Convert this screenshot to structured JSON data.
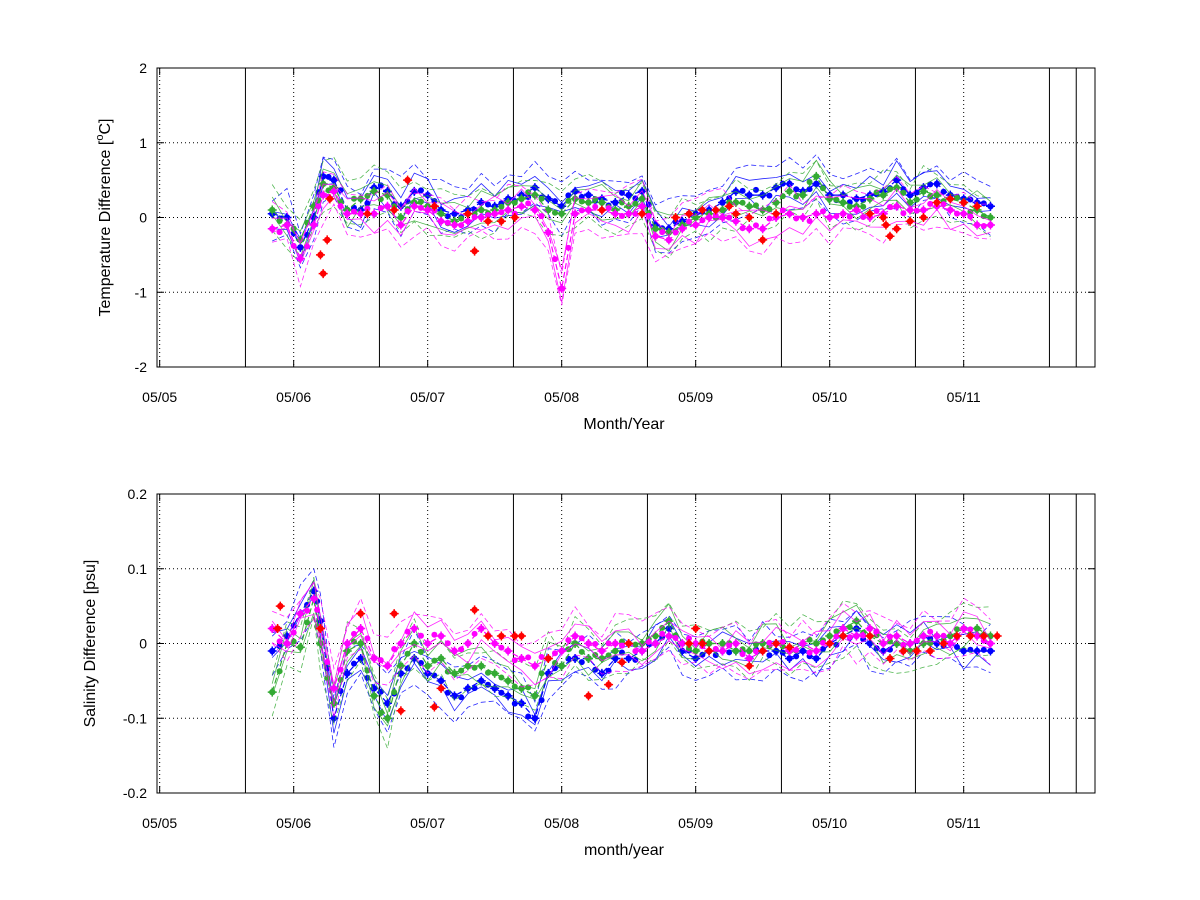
{
  "chart_data": [
    {
      "type": "line",
      "title": "",
      "xlabel": "Month/Year",
      "ylabel_main": "Temperature Difference [",
      "ylabel_sup": "o",
      "ylabel_end": "C]",
      "ylim": [
        -2,
        2
      ],
      "yticks": [
        -2,
        -1,
        0,
        1,
        2
      ],
      "ytick_labels": [
        "-2",
        "-1",
        "0",
        "1",
        "2"
      ],
      "xlim": [
        -0.02,
        6.98
      ],
      "xticks": [
        0,
        1,
        2,
        3,
        4,
        5,
        6
      ],
      "xtick_labels": [
        "05/05",
        "05/06",
        "05/07",
        "05/08",
        "05/09",
        "05/10",
        "05/11"
      ],
      "vlines": [
        0.64,
        1.64,
        2.64,
        3.64,
        4.64,
        5.64,
        6.64,
        6.84
      ],
      "grid": "dotted",
      "legend": "none",
      "series": [
        {
          "color": "#0000ff",
          "style": "markers+dashed-band",
          "x": [
            0.84,
            0.95,
            1.05,
            1.15,
            1.22,
            1.3,
            1.4,
            1.5,
            1.6,
            1.7,
            1.8,
            1.9,
            2.0,
            2.1,
            2.2,
            2.3,
            2.4,
            2.5,
            2.6,
            2.7,
            2.8,
            2.9,
            3.0,
            3.1,
            3.2,
            3.3,
            3.4,
            3.5,
            3.6,
            3.7,
            3.8,
            3.9,
            4.0,
            4.1,
            4.2,
            4.3,
            4.4,
            4.5,
            4.6,
            4.7,
            4.8,
            4.9,
            5.0,
            5.1,
            5.2,
            5.3,
            5.4,
            5.5,
            5.6,
            5.7,
            5.8,
            5.9,
            6.0,
            6.1,
            6.2
          ],
          "y": [
            0.05,
            0.0,
            -0.4,
            0.0,
            0.55,
            0.5,
            0.1,
            0.1,
            0.4,
            0.35,
            0.15,
            0.35,
            0.3,
            0.1,
            0.05,
            0.1,
            0.2,
            0.15,
            0.25,
            0.3,
            0.4,
            0.25,
            0.15,
            0.35,
            0.3,
            0.25,
            0.2,
            0.3,
            0.35,
            -0.1,
            -0.15,
            -0.05,
            0.05,
            0.1,
            0.2,
            0.35,
            0.3,
            0.3,
            0.4,
            0.45,
            0.35,
            0.45,
            0.3,
            0.3,
            0.25,
            0.3,
            0.35,
            0.5,
            0.3,
            0.4,
            0.45,
            0.3,
            0.25,
            0.2,
            0.15
          ]
        },
        {
          "color": "#33aa33",
          "style": "markers+dashed-band",
          "x": [
            0.84,
            0.95,
            1.05,
            1.15,
            1.22,
            1.3,
            1.4,
            1.5,
            1.6,
            1.7,
            1.8,
            1.9,
            2.0,
            2.1,
            2.2,
            2.3,
            2.4,
            2.5,
            2.6,
            2.7,
            2.8,
            2.9,
            3.0,
            3.1,
            3.2,
            3.3,
            3.4,
            3.5,
            3.6,
            3.7,
            3.8,
            3.9,
            4.0,
            4.1,
            4.2,
            4.3,
            4.4,
            4.5,
            4.6,
            4.7,
            4.8,
            4.9,
            5.0,
            5.1,
            5.2,
            5.3,
            5.4,
            5.5,
            5.6,
            5.7,
            5.8,
            5.9,
            6.0,
            6.1,
            6.2
          ],
          "y": [
            0.1,
            -0.1,
            -0.3,
            0.15,
            0.45,
            0.4,
            0.1,
            0.25,
            0.35,
            0.3,
            0.0,
            0.2,
            0.15,
            0.05,
            -0.05,
            0.05,
            0.1,
            0.1,
            0.2,
            0.25,
            0.3,
            0.1,
            0.05,
            0.25,
            0.2,
            0.2,
            0.1,
            0.15,
            0.25,
            -0.15,
            -0.2,
            -0.1,
            0.0,
            0.05,
            0.1,
            0.2,
            0.15,
            0.1,
            0.2,
            0.35,
            0.3,
            0.55,
            0.25,
            0.2,
            0.15,
            0.25,
            0.3,
            0.4,
            0.2,
            0.35,
            0.3,
            0.25,
            0.2,
            0.1,
            0.0
          ]
        },
        {
          "color": "#ff00ff",
          "style": "markers+dashed-band",
          "x": [
            0.84,
            0.95,
            1.05,
            1.15,
            1.22,
            1.3,
            1.4,
            1.5,
            1.6,
            1.7,
            1.8,
            1.9,
            2.0,
            2.1,
            2.2,
            2.3,
            2.4,
            2.5,
            2.6,
            2.7,
            2.8,
            2.9,
            3.0,
            3.1,
            3.2,
            3.3,
            3.4,
            3.5,
            3.6,
            3.7,
            3.8,
            3.9,
            4.0,
            4.1,
            4.2,
            4.3,
            4.4,
            4.5,
            4.6,
            4.7,
            4.8,
            4.9,
            5.0,
            5.1,
            5.2,
            5.3,
            5.4,
            5.5,
            5.6,
            5.7,
            5.8,
            5.9,
            6.0,
            6.1,
            6.2
          ],
          "y": [
            -0.15,
            -0.1,
            -0.55,
            -0.1,
            0.3,
            0.35,
            0.05,
            0.05,
            0.05,
            0.15,
            -0.1,
            0.15,
            0.1,
            -0.05,
            -0.1,
            -0.05,
            0.0,
            0.05,
            0.1,
            0.15,
            0.1,
            -0.2,
            -0.95,
            0.05,
            0.1,
            0.1,
            0.05,
            0.05,
            0.15,
            -0.25,
            -0.3,
            -0.15,
            -0.1,
            0.0,
            0.0,
            -0.05,
            -0.15,
            -0.15,
            0.0,
            0.05,
            0.0,
            0.05,
            0.0,
            0.05,
            0.1,
            0.0,
            0.05,
            0.15,
            0.1,
            0.1,
            0.15,
            0.1,
            0.05,
            -0.1,
            -0.1
          ]
        },
        {
          "color": "#ff0000",
          "style": "markers",
          "x": [
            1.2,
            1.22,
            1.25,
            1.27,
            1.55,
            1.75,
            1.85,
            2.05,
            2.3,
            2.35,
            2.45,
            2.55,
            2.65,
            3.3,
            3.6,
            3.85,
            3.95,
            4.05,
            4.15,
            4.25,
            4.3,
            4.4,
            4.5,
            4.6,
            5.3,
            5.4,
            5.42,
            5.45,
            5.5,
            5.6,
            5.7,
            5.8,
            5.9,
            6.0,
            6.1
          ],
          "y": [
            -0.5,
            -0.75,
            -0.3,
            0.25,
            0.05,
            0.1,
            0.5,
            0.15,
            0.05,
            -0.45,
            -0.05,
            -0.05,
            0.0,
            0.1,
            0.05,
            0.0,
            0.05,
            0.1,
            0.1,
            0.15,
            0.05,
            0.0,
            -0.3,
            0.05,
            0.05,
            0.0,
            -0.1,
            -0.25,
            -0.15,
            -0.05,
            0.0,
            0.2,
            0.25,
            0.2,
            0.15
          ]
        }
      ]
    },
    {
      "type": "line",
      "title": "",
      "xlabel": "month/year",
      "ylabel": "Salinity Difference [psu]",
      "ylim": [
        -0.2,
        0.2
      ],
      "yticks": [
        -0.2,
        -0.1,
        0,
        0.1,
        0.2
      ],
      "ytick_labels": [
        "-0.2",
        "-0.1",
        "0",
        "0.1",
        "0.2"
      ],
      "xlim": [
        -0.02,
        6.98
      ],
      "xticks": [
        0,
        1,
        2,
        3,
        4,
        5,
        6
      ],
      "xtick_labels": [
        "05/05",
        "05/06",
        "05/07",
        "05/08",
        "05/09",
        "05/10",
        "05/11"
      ],
      "vlines": [
        0.64,
        1.64,
        2.64,
        3.64,
        4.64,
        5.64,
        6.64,
        6.84
      ],
      "grid": "dotted",
      "legend": "none",
      "series": [
        {
          "color": "#0000ff",
          "style": "markers+dashed-band",
          "x": [
            0.84,
            0.95,
            1.05,
            1.15,
            1.2,
            1.3,
            1.4,
            1.5,
            1.6,
            1.7,
            1.8,
            1.9,
            2.0,
            2.1,
            2.2,
            2.3,
            2.4,
            2.5,
            2.6,
            2.7,
            2.8,
            2.9,
            3.0,
            3.1,
            3.2,
            3.3,
            3.4,
            3.5,
            3.6,
            3.7,
            3.8,
            3.9,
            4.0,
            4.1,
            4.2,
            4.3,
            4.4,
            4.5,
            4.6,
            4.7,
            4.8,
            4.9,
            5.0,
            5.1,
            5.2,
            5.3,
            5.4,
            5.5,
            5.6,
            5.7,
            5.8,
            5.9,
            6.0,
            6.1,
            6.2
          ],
          "y": [
            -0.01,
            0.01,
            0.04,
            0.07,
            0.03,
            -0.1,
            -0.04,
            -0.02,
            -0.06,
            -0.08,
            -0.04,
            -0.02,
            -0.04,
            -0.05,
            -0.07,
            -0.06,
            -0.05,
            -0.06,
            -0.07,
            -0.08,
            -0.1,
            -0.04,
            -0.03,
            -0.02,
            -0.02,
            -0.04,
            -0.02,
            -0.02,
            -0.01,
            0.0,
            0.02,
            -0.01,
            -0.02,
            -0.01,
            -0.01,
            -0.01,
            -0.02,
            -0.01,
            -0.01,
            -0.02,
            -0.01,
            -0.02,
            0.0,
            0.01,
            0.02,
            0.0,
            -0.01,
            0.0,
            0.0,
            0.01,
            0.0,
            0.0,
            -0.01,
            -0.01,
            -0.01
          ]
        },
        {
          "color": "#33aa33",
          "style": "markers+dashed-band",
          "x": [
            0.84,
            0.95,
            1.05,
            1.15,
            1.2,
            1.3,
            1.4,
            1.5,
            1.6,
            1.7,
            1.8,
            1.9,
            2.0,
            2.1,
            2.2,
            2.3,
            2.4,
            2.5,
            2.6,
            2.7,
            2.8,
            2.9,
            3.0,
            3.1,
            3.2,
            3.3,
            3.4,
            3.5,
            3.6,
            3.7,
            3.8,
            3.9,
            4.0,
            4.1,
            4.2,
            4.3,
            4.4,
            4.5,
            4.6,
            4.7,
            4.8,
            4.9,
            5.0,
            5.1,
            5.2,
            5.3,
            5.4,
            5.5,
            5.6,
            5.7,
            5.8,
            5.9,
            6.0,
            6.1,
            6.2
          ],
          "y": [
            -0.065,
            0.0,
            -0.005,
            0.06,
            0.0,
            -0.08,
            -0.01,
            0.0,
            -0.07,
            -0.1,
            -0.03,
            0.0,
            -0.03,
            -0.02,
            -0.04,
            -0.03,
            -0.03,
            -0.04,
            -0.05,
            -0.06,
            -0.07,
            -0.02,
            -0.03,
            0.0,
            -0.02,
            -0.02,
            -0.01,
            0.0,
            0.0,
            0.01,
            0.03,
            0.0,
            -0.01,
            0.0,
            0.0,
            -0.01,
            -0.01,
            0.0,
            0.0,
            -0.01,
            0.0,
            0.0,
            0.01,
            0.02,
            0.03,
            0.01,
            0.0,
            0.0,
            -0.01,
            0.0,
            0.01,
            0.01,
            0.02,
            0.02,
            0.01
          ]
        },
        {
          "color": "#ff00ff",
          "style": "markers+dashed-band",
          "x": [
            0.84,
            0.95,
            1.05,
            1.15,
            1.2,
            1.3,
            1.4,
            1.5,
            1.6,
            1.7,
            1.8,
            1.9,
            2.0,
            2.1,
            2.2,
            2.3,
            2.4,
            2.5,
            2.6,
            2.7,
            2.8,
            2.9,
            3.0,
            3.1,
            3.2,
            3.3,
            3.4,
            3.5,
            3.6,
            3.7,
            3.8,
            3.9,
            4.0,
            4.1,
            4.2,
            4.3,
            4.4,
            4.5,
            4.6,
            4.7,
            4.8,
            4.9,
            5.0,
            5.1,
            5.2,
            5.3,
            5.4,
            5.5,
            5.6,
            5.7,
            5.8,
            5.9,
            6.0,
            6.1,
            6.2
          ],
          "y": [
            0.02,
            0.0,
            0.04,
            0.06,
            0.02,
            -0.06,
            0.0,
            0.02,
            -0.02,
            -0.03,
            0.0,
            0.02,
            0.0,
            0.01,
            -0.01,
            0.0,
            0.02,
            0.0,
            -0.01,
            -0.02,
            -0.03,
            -0.02,
            -0.01,
            0.01,
            0.0,
            -0.01,
            0.0,
            0.0,
            -0.01,
            0.0,
            0.01,
            0.0,
            0.0,
            -0.01,
            -0.01,
            0.0,
            -0.02,
            -0.01,
            0.0,
            -0.01,
            0.0,
            -0.01,
            0.0,
            0.02,
            0.01,
            0.02,
            0.0,
            0.01,
            0.0,
            0.01,
            0.01,
            0.0,
            0.02,
            0.01,
            0.0
          ]
        },
        {
          "color": "#ff0000",
          "style": "markers",
          "x": [
            0.88,
            0.9,
            1.2,
            1.5,
            1.75,
            1.8,
            2.05,
            2.1,
            2.35,
            2.45,
            2.55,
            2.65,
            2.7,
            2.9,
            3.2,
            3.35,
            3.45,
            3.5,
            3.95,
            4.0,
            4.05,
            4.1,
            4.4,
            4.5,
            4.6,
            4.7,
            5.0,
            5.1,
            5.3,
            5.45,
            5.55,
            5.65,
            5.75,
            5.85,
            5.95,
            6.05,
            6.15,
            6.25
          ],
          "y": [
            0.02,
            0.05,
            0.02,
            0.04,
            0.04,
            -0.09,
            -0.085,
            -0.06,
            0.045,
            0.01,
            0.01,
            0.01,
            0.01,
            -0.02,
            -0.07,
            -0.055,
            -0.025,
            0.0,
            0.0,
            0.02,
            0.0,
            -0.01,
            -0.03,
            -0.01,
            0.0,
            -0.005,
            0.0,
            0.01,
            0.01,
            -0.02,
            -0.01,
            -0.01,
            -0.01,
            0.0,
            0.01,
            0.01,
            0.01,
            0.01
          ]
        }
      ]
    }
  ]
}
